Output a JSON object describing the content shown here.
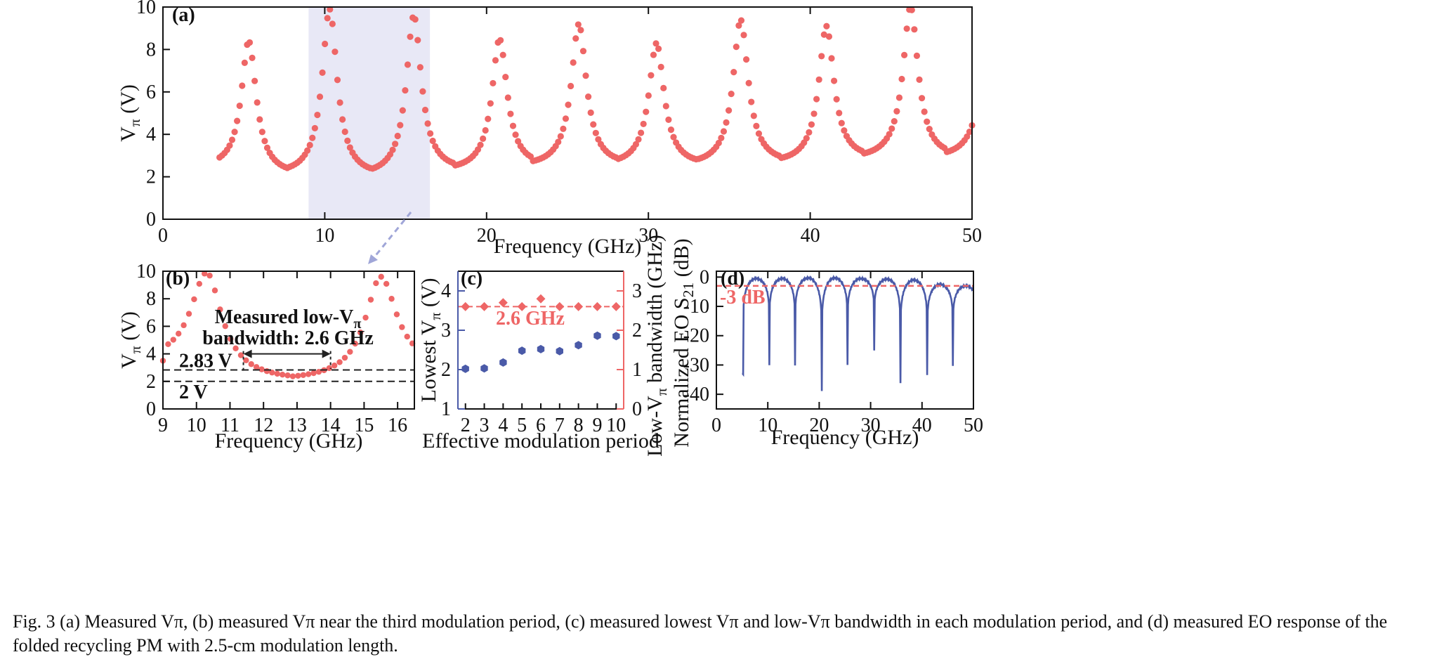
{
  "colors": {
    "red": "#ee6666",
    "blue": "#4a5aa8",
    "highlight": "#e8e8f6",
    "arrow": "#a0a6d8",
    "axis": "#111111"
  },
  "caption": "Fig. 3 (a) Measured Vπ, (b) measured Vπ near the third modulation period, (c) measured lowest Vπ and low-Vπ bandwidth in each modulation period, and (d) measured EO response of the folded recycling PM with 2.5-cm modulation length.",
  "chart_data": [
    {
      "panel": "a",
      "type": "scatter",
      "panel_label": "(a)",
      "xlabel": "Frequency (GHz)",
      "ylabel": "Vπ (V)",
      "xlim": [
        0,
        50
      ],
      "ylim": [
        0,
        10
      ],
      "xticks": [
        0,
        10,
        20,
        30,
        40,
        50
      ],
      "yticks": [
        0,
        2,
        4,
        6,
        8,
        10
      ],
      "highlight_band": [
        9,
        16.5
      ],
      "series": [
        {
          "color": "#ee6666",
          "pattern": {
            "start": 3.5,
            "end": 50,
            "step": 0.155,
            "peaks": [
              [
                5.3,
                8.4
              ],
              [
                10.3,
                9.9
              ],
              [
                15.5,
                9.6
              ],
              [
                20.8,
                8.5
              ],
              [
                25.7,
                9.2
              ],
              [
                30.5,
                8.3
              ],
              [
                35.7,
                9.4
              ],
              [
                41.0,
                9.1
              ],
              [
                46.2,
                10.0
              ],
              [
                51.0,
                9.0
              ]
            ],
            "minima": [
              [
                7.8,
                2.1
              ],
              [
                12.8,
                2.05
              ],
              [
                18.0,
                2.3
              ],
              [
                22.8,
                2.5
              ],
              [
                28.0,
                2.55
              ],
              [
                33.0,
                2.55
              ],
              [
                38.2,
                2.65
              ],
              [
                43.2,
                2.85
              ],
              [
                48.3,
                2.9
              ]
            ]
          }
        }
      ]
    },
    {
      "panel": "b",
      "type": "scatter",
      "panel_label": "(b)",
      "xlabel": "Frequency (GHz)",
      "ylabel": "Vπ (V)",
      "xlim": [
        9,
        16.5
      ],
      "ylim": [
        0,
        10
      ],
      "xticks": [
        9,
        10,
        11,
        12,
        13,
        14,
        15,
        16
      ],
      "yticks": [
        0,
        2,
        4,
        6,
        8,
        10
      ],
      "hlines": [
        {
          "y": 2.83,
          "label": "2.83 V"
        },
        {
          "y": 2.0,
          "label": "2 V"
        }
      ],
      "bandwidth_marker": {
        "x1": 11.4,
        "x2": 14.0,
        "line1": "Measured low-Vπ",
        "line2": "bandwidth: 2.6 GHz"
      },
      "series": [
        {
          "color": "#ee6666",
          "pattern": {
            "start": 9.0,
            "end": 16.5,
            "step": 0.155,
            "peaks": [
              [
                10.3,
                9.9
              ],
              [
                15.5,
                9.6
              ]
            ],
            "minima": [
              [
                12.8,
                2.05
              ]
            ],
            "start_value": 3.5,
            "end_value": 3.1
          }
        }
      ]
    },
    {
      "panel": "c",
      "type": "scatter",
      "panel_label": "(c)",
      "xlabel": "Effective modulation period",
      "ylabel_left": "Lowest Vπ (V)",
      "ylabel_right": "Low-Vπ bandwidth (GHz)",
      "xlim": [
        1.6,
        10.4
      ],
      "ylim_left": [
        1,
        4.5
      ],
      "ylim_right": [
        0,
        3.5
      ],
      "xticks": [
        2,
        3,
        4,
        5,
        6,
        7,
        8,
        9,
        10
      ],
      "yticks_left": [
        1,
        2,
        3,
        4
      ],
      "yticks_right": [
        0,
        1,
        2,
        3
      ],
      "categories": [
        2,
        3,
        4,
        5,
        6,
        7,
        8,
        9,
        10
      ],
      "series": [
        {
          "axis": "left",
          "marker": "hexagon",
          "color": "#4a5aa8",
          "values": [
            2.02,
            2.03,
            2.18,
            2.48,
            2.52,
            2.47,
            2.62,
            2.86,
            2.85
          ]
        },
        {
          "axis": "right",
          "marker": "diamond",
          "color": "#ee6666",
          "values": [
            2.6,
            2.6,
            2.7,
            2.6,
            2.8,
            2.6,
            2.6,
            2.6,
            2.6
          ]
        }
      ],
      "reference_line": {
        "axis": "right",
        "y": 2.6,
        "label": "2.6 GHz"
      }
    },
    {
      "panel": "d",
      "type": "line",
      "panel_label": "(d)",
      "xlabel": "Frequency (GHz)",
      "ylabel": "Normalized EO S21 (dB)",
      "xlim": [
        0,
        50
      ],
      "ylim": [
        -45,
        2
      ],
      "xticks": [
        0,
        10,
        20,
        30,
        40,
        50
      ],
      "yticks": [
        0,
        -10,
        -20,
        -30,
        -40
      ],
      "reference_line": {
        "y": -3,
        "label": "-3 dB"
      },
      "series": [
        {
          "color": "#4a5aa8",
          "pattern": {
            "start": 5.0,
            "end": 50,
            "step": 0.1,
            "nulls": [
              [
                5.2,
                -33
              ],
              [
                10.3,
                -30.5
              ],
              [
                15.3,
                -31
              ],
              [
                20.5,
                -39.5
              ],
              [
                25.5,
                -31
              ],
              [
                30.7,
                -25.5
              ],
              [
                35.8,
                -37
              ],
              [
                41.0,
                -34.5
              ],
              [
                46.0,
                -31
              ]
            ],
            "arches": [
              [
                7.7,
                -0.5
              ],
              [
                12.8,
                -0.5
              ],
              [
                17.9,
                -0.3
              ],
              [
                23.0,
                -0.3
              ],
              [
                28.1,
                -0.5
              ],
              [
                33.2,
                -0.7
              ],
              [
                38.3,
                -1.0
              ],
              [
                43.4,
                -2.5
              ],
              [
                48.5,
                -3.0
              ]
            ]
          }
        }
      ]
    }
  ]
}
